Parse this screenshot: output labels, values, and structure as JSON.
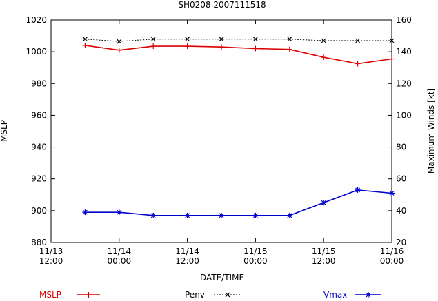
{
  "chart_data": {
    "type": "line",
    "title": "SH0208 2007111518",
    "xlabel": "DATE/TIME",
    "ylabel": "MSLP",
    "y2label": "Maximum Winds [kt]",
    "x_ticks": [
      {
        "t": 0,
        "line1": "11/13",
        "line2": "12:00"
      },
      {
        "t": 12,
        "line1": "11/14",
        "line2": "00:00"
      },
      {
        "t": 24,
        "line1": "11/14",
        "line2": "12:00"
      },
      {
        "t": 36,
        "line1": "11/15",
        "line2": "00:00"
      },
      {
        "t": 48,
        "line1": "11/15",
        "line2": "12:00"
      },
      {
        "t": 60,
        "line1": "11/16",
        "line2": "00:00"
      }
    ],
    "xlim": [
      0,
      60
    ],
    "ylim": [
      880,
      1020
    ],
    "yticks": [
      880,
      900,
      920,
      940,
      960,
      980,
      1000,
      1020
    ],
    "y2lim": [
      20,
      160
    ],
    "y2ticks": [
      20,
      40,
      60,
      80,
      100,
      120,
      140,
      160
    ],
    "grid": false,
    "legend_position": "bottom",
    "x_hours": [
      6,
      12,
      18,
      24,
      30,
      36,
      42,
      48,
      54,
      60
    ],
    "series": [
      {
        "name": "MSLP",
        "axis": "left",
        "color": "#dd0000",
        "marker": "plus",
        "dash": "",
        "values": [
          1004,
          1001,
          1003.5,
          1003.5,
          1003,
          1002,
          1001.5,
          996.5,
          992.5,
          995.5
        ]
      },
      {
        "name": "Penv",
        "axis": "left",
        "color": "#000000",
        "marker": "x",
        "dash": "2,2",
        "values": [
          1008,
          1006.5,
          1008,
          1008,
          1008,
          1008,
          1008,
          1007,
          1007,
          1007
        ]
      },
      {
        "name": "Vmax",
        "axis": "right",
        "color": "#0000cc",
        "marker": "star",
        "dash": "",
        "values": [
          39,
          39,
          37,
          37,
          37,
          37,
          37,
          45,
          53,
          51
        ]
      }
    ]
  }
}
